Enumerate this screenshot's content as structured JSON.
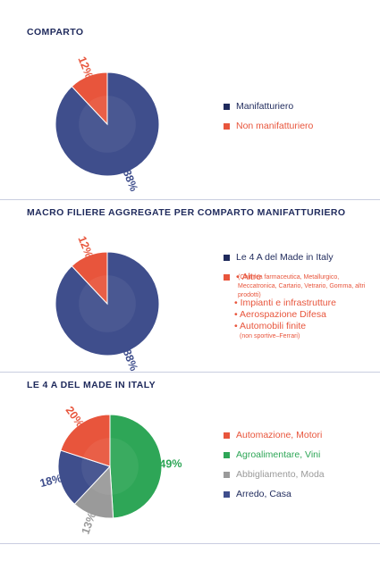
{
  "colors": {
    "navy": "#3f4e8c",
    "red": "#e8553c",
    "green": "#2ea657",
    "grey": "#9a9a9a",
    "title": "#1f2a5c"
  },
  "sections": [
    {
      "title": "COMPARTO",
      "legend": [
        "Manifatturiero",
        "Non manifatturiero"
      ]
    },
    {
      "title": "MACRO FILIERE AGGREGATE PER COMPARTO MANIFATTURIERO",
      "legend_main": "Le 4 A del Made in Italy",
      "altre_label": "Altre",
      "altre_detail": "(Chimica farmaceutica, Metallurgico, Meccatronica, Cartario, Vetrario, Gomma, altri prodotti)",
      "bullets": [
        "Impianti e infrastrutture",
        "Aerospazione Difesa",
        "Automobili finite"
      ],
      "automobili_note": "(non sportive–Ferrari)"
    },
    {
      "title": "LE 4 A DEL MADE IN ITALY",
      "legend": [
        "Automazione, Motori",
        "Agroalimentare, Vini",
        "Abbigliamento, Moda",
        "Arredo, Casa"
      ]
    }
  ],
  "chart_data": [
    {
      "type": "pie",
      "title": "COMPARTO",
      "labels": [
        "Manifatturiero",
        "Non manifatturiero"
      ],
      "values": [
        88,
        12
      ],
      "value_labels": [
        "88%",
        "12%"
      ],
      "colors": [
        "#3f4e8c",
        "#e8553c"
      ]
    },
    {
      "type": "pie",
      "title": "MACRO FILIERE AGGREGATE PER COMPARTO MANIFATTURIERO",
      "labels": [
        "Le 4 A del Made in Italy",
        "Altre"
      ],
      "values": [
        88,
        12
      ],
      "value_labels": [
        "88%",
        "12%"
      ],
      "colors": [
        "#3f4e8c",
        "#e8553c"
      ]
    },
    {
      "type": "pie",
      "title": "LE 4 A DEL MADE IN ITALY",
      "labels": [
        "Agroalimentare, Vini",
        "Abbigliamento, Moda",
        "Arredo, Casa",
        "Automazione, Motori"
      ],
      "values": [
        49,
        13,
        18,
        20
      ],
      "value_labels": [
        "49%",
        "13%",
        "18%",
        "20%"
      ],
      "colors": [
        "#2ea657",
        "#9a9a9a",
        "#3f4e8c",
        "#e8553c"
      ]
    }
  ]
}
